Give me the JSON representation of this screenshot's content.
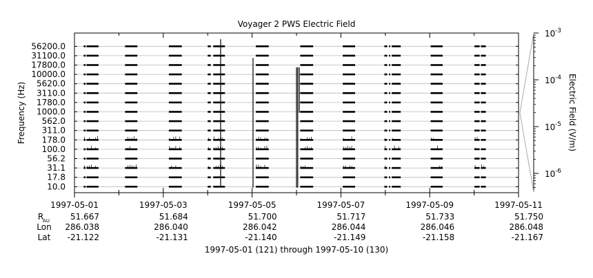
{
  "chart_data": {
    "type": "heatmap",
    "title": "Voyager 2 PWS Electric Field",
    "ylabel": "Frequency (Hz)",
    "colorbar_label": "Electric Field (V/m)",
    "y_scale": "log",
    "y_channels": [
      "10.0",
      "17.8",
      "31.1",
      "56.2",
      "100.0",
      "178.0",
      "311.0",
      "562.0",
      "1000.0",
      "1780.0",
      "3110.0",
      "5620.0",
      "10000.0",
      "17800.0",
      "31100.0",
      "56200.0"
    ],
    "x_start": "1997-05-01",
    "x_end": "1997-05-11",
    "x_ticks": [
      {
        "label": "1997-05-01",
        "date": "1997-05-01"
      },
      {
        "label": "1997-05-03",
        "date": "1997-05-03"
      },
      {
        "label": "1997-05-05",
        "date": "1997-05-05"
      },
      {
        "label": "1997-05-07",
        "date": "1997-05-07"
      },
      {
        "label": "1997-05-09",
        "date": "1997-05-09"
      },
      {
        "label": "1997-05-11",
        "date": "1997-05-11"
      }
    ],
    "x_minor_ticks": [
      "1997-05-02",
      "1997-05-04",
      "1997-05-06",
      "1997-05-08",
      "1997-05-10"
    ],
    "ephemeris": [
      {
        "label": "R",
        "subscript": "AU",
        "values": [
          "51.667",
          "51.684",
          "51.700",
          "51.717",
          "51.733",
          "51.750"
        ]
      },
      {
        "label": "Lon",
        "subscript": "",
        "values": [
          "286.038",
          "286.040",
          "286.042",
          "286.044",
          "286.046",
          "286.048"
        ]
      },
      {
        "label": "Lat",
        "subscript": "",
        "values": [
          "-21.122",
          "-21.131",
          "-21.140",
          "-21.149",
          "-21.158",
          "-21.167"
        ]
      }
    ],
    "x_caption": "1997-05-01 (121) through 1997-05-10 (130)",
    "colorbar": {
      "scale": "log",
      "range": [
        4e-07,
        0.001
      ],
      "ticks": [
        {
          "value": 0.001,
          "base": "10",
          "exp": "-3"
        },
        {
          "value": 0.0001,
          "base": "10",
          "exp": "-4"
        },
        {
          "value": 1e-05,
          "base": "10",
          "exp": "-5"
        },
        {
          "value": 1e-06,
          "base": "10",
          "exp": "-6"
        }
      ]
    },
    "data_segments": [
      [
        "1997-05-01T05:00",
        "1997-05-01T06:00"
      ],
      [
        "1997-05-01T06:30",
        "1997-05-01T13:00"
      ],
      [
        "1997-05-02T03:20",
        "1997-05-02T10:00"
      ],
      [
        "1997-05-03T03:00",
        "1997-05-03T10:00"
      ],
      [
        "1997-05-04T00:00",
        "1997-05-04T01:40"
      ],
      [
        "1997-05-04T03:00",
        "1997-05-04T09:20"
      ],
      [
        "1997-05-05T02:00",
        "1997-05-05T09:00"
      ],
      [
        "1997-05-06T02:00",
        "1997-05-06T09:00"
      ],
      [
        "1997-05-07T01:00",
        "1997-05-07T07:40"
      ],
      [
        "1997-05-07T23:30",
        "1997-05-08T01:00"
      ],
      [
        "1997-05-08T02:00",
        "1997-05-08T02:40"
      ],
      [
        "1997-05-08T03:30",
        "1997-05-08T08:20"
      ],
      [
        "1997-05-09T00:30",
        "1997-05-09T07:00"
      ],
      [
        "1997-05-10T00:10",
        "1997-05-10T03:00"
      ],
      [
        "1997-05-10T03:40",
        "1997-05-10T06:20"
      ]
    ],
    "noisy_channels": [
      "31.1",
      "100.0",
      "178.0"
    ],
    "bursts": [
      {
        "time": "1997-05-04T07:00",
        "from": "10.0",
        "to": "56200.0"
      },
      {
        "time": "1997-05-05T00:30",
        "from": "10.0",
        "to": "17800.0"
      },
      {
        "time": "1997-05-06T00:00",
        "from": "10.0",
        "to": "10000.0"
      },
      {
        "time": "1997-05-06T00:40",
        "from": "10.0",
        "to": "10000.0"
      },
      {
        "time": "1997-05-06T01:30",
        "from": "1000.0",
        "to": "10000.0"
      }
    ]
  }
}
